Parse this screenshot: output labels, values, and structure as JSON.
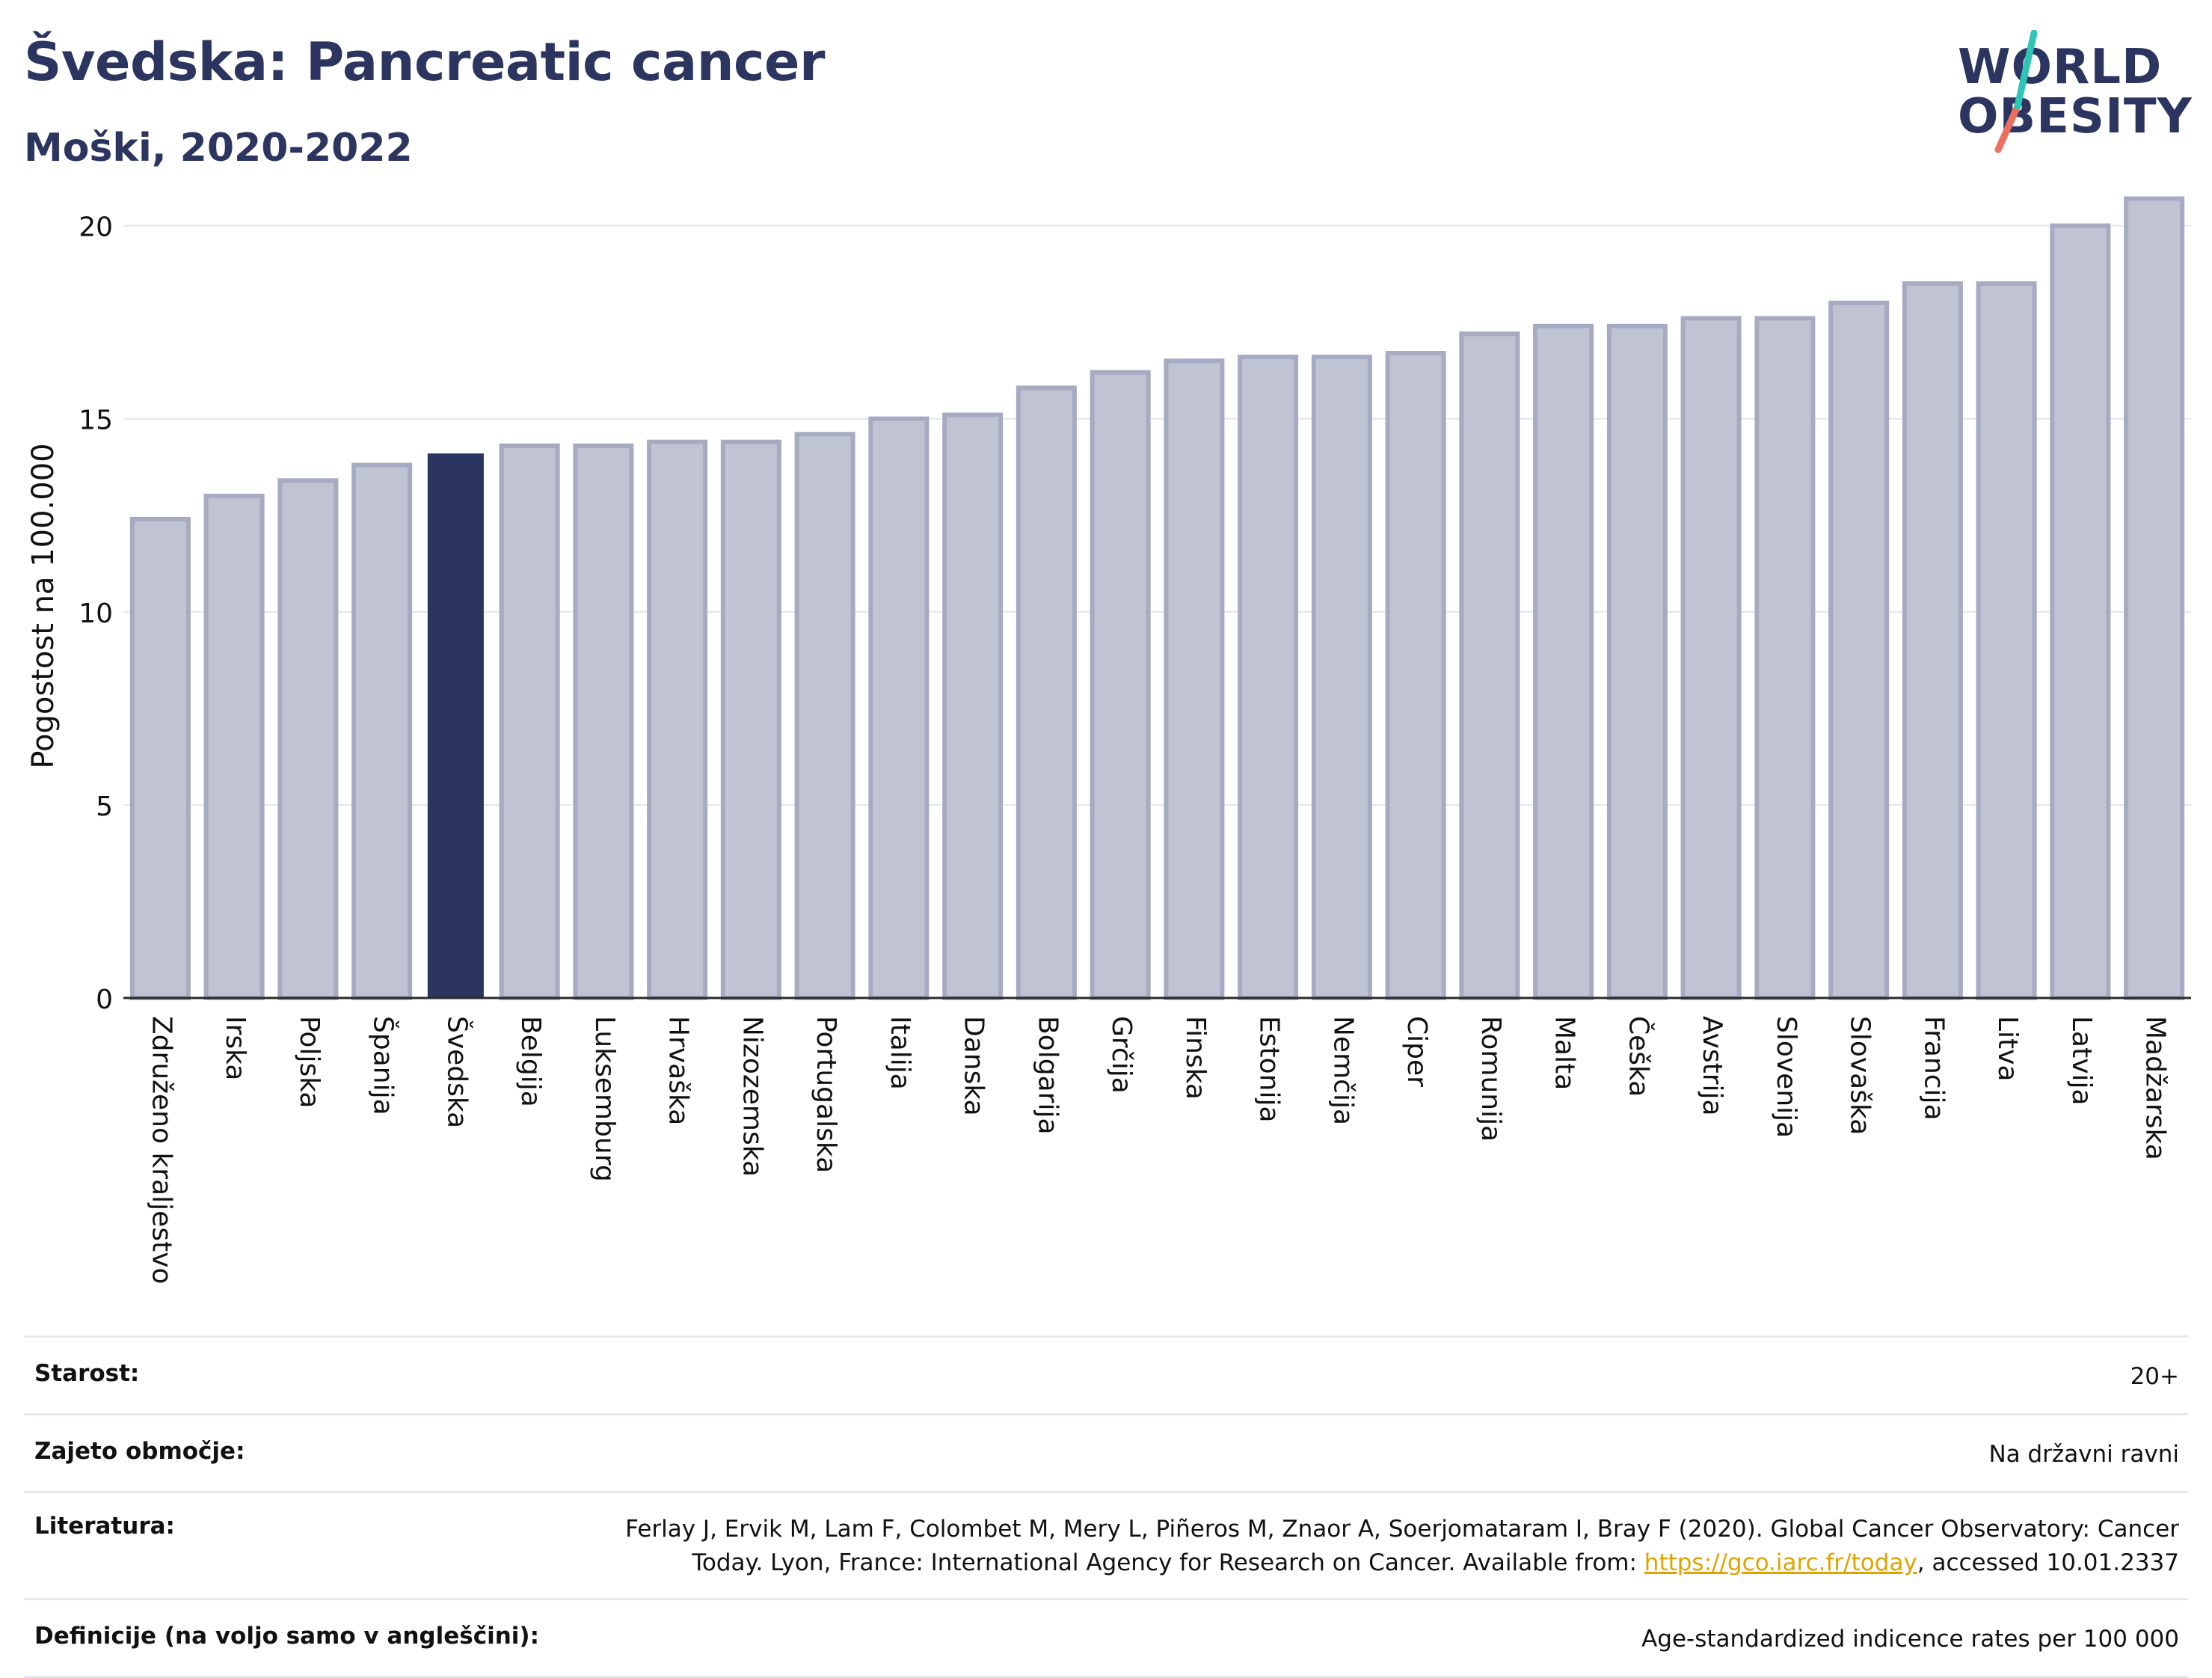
{
  "header": {
    "title": "Švedska: Pancreatic cancer",
    "subtitle": "Moški, 2020-2022",
    "logo_line1": "WORLD",
    "logo_line2": "OBESITY"
  },
  "colors": {
    "highlight_bar": "#2b3560",
    "other_bar_fill": "#c0c4d2",
    "other_bar_stroke": "#a6abc2",
    "text": "#2b3560",
    "link": "#e0a400",
    "logo_teal": "#2ec4b6",
    "logo_coral": "#ef6f5e"
  },
  "chart_data": {
    "type": "bar",
    "title": "Švedska: Pancreatic cancer",
    "subtitle": "Moški, 2020-2022",
    "ylabel": "Pogostost na 100.000",
    "xlabel": "",
    "ylim": [
      0,
      21
    ],
    "yticks": [
      0,
      5,
      10,
      15,
      20
    ],
    "grid": true,
    "highlight": "Švedska",
    "categories": [
      "Združeno kraljestvo",
      "Irska",
      "Poljska",
      "Španija",
      "Švedska",
      "Belgija",
      "Luksemburg",
      "Hrvaška",
      "Nizozemska",
      "Portugalska",
      "Italija",
      "Danska",
      "Bolgarija",
      "Grčija",
      "Finska",
      "Estonija",
      "Nemčija",
      "Ciper",
      "Romunija",
      "Malta",
      "Češka",
      "Avstrija",
      "Slovenija",
      "Slovaška",
      "Francija",
      "Litva",
      "Latvija",
      "Madžarska"
    ],
    "values": [
      12.4,
      13.0,
      13.4,
      13.8,
      14.1,
      14.3,
      14.3,
      14.4,
      14.4,
      14.6,
      15.0,
      15.1,
      15.8,
      16.2,
      16.5,
      16.6,
      16.6,
      16.7,
      17.2,
      17.4,
      17.4,
      17.6,
      17.6,
      18.0,
      18.5,
      18.5,
      20.0,
      20.7
    ]
  },
  "info": {
    "age_label": "Starost:",
    "age_value": "20+",
    "coverage_label": "Zajeto območje:",
    "coverage_value": "Na državni ravni",
    "references_label": "Literatura:",
    "references_line1": "Ferlay J, Ervik M, Lam F, Colombet M, Mery L, Piñeros M, Znaor A, Soerjomataram I, Bray F (2020). Global Cancer Observatory: Cancer",
    "references_line2_pre": "Today. Lyon, France: International Agency for Research on Cancer. Available from: ",
    "references_link": "https://gco.iarc.fr/today",
    "references_line2_post": ", accessed 10.01.2337",
    "definitions_label": "Definicije (na voljo samo v angleščini):",
    "definitions_value": "Age-standardized indicence rates per 100 000"
  }
}
